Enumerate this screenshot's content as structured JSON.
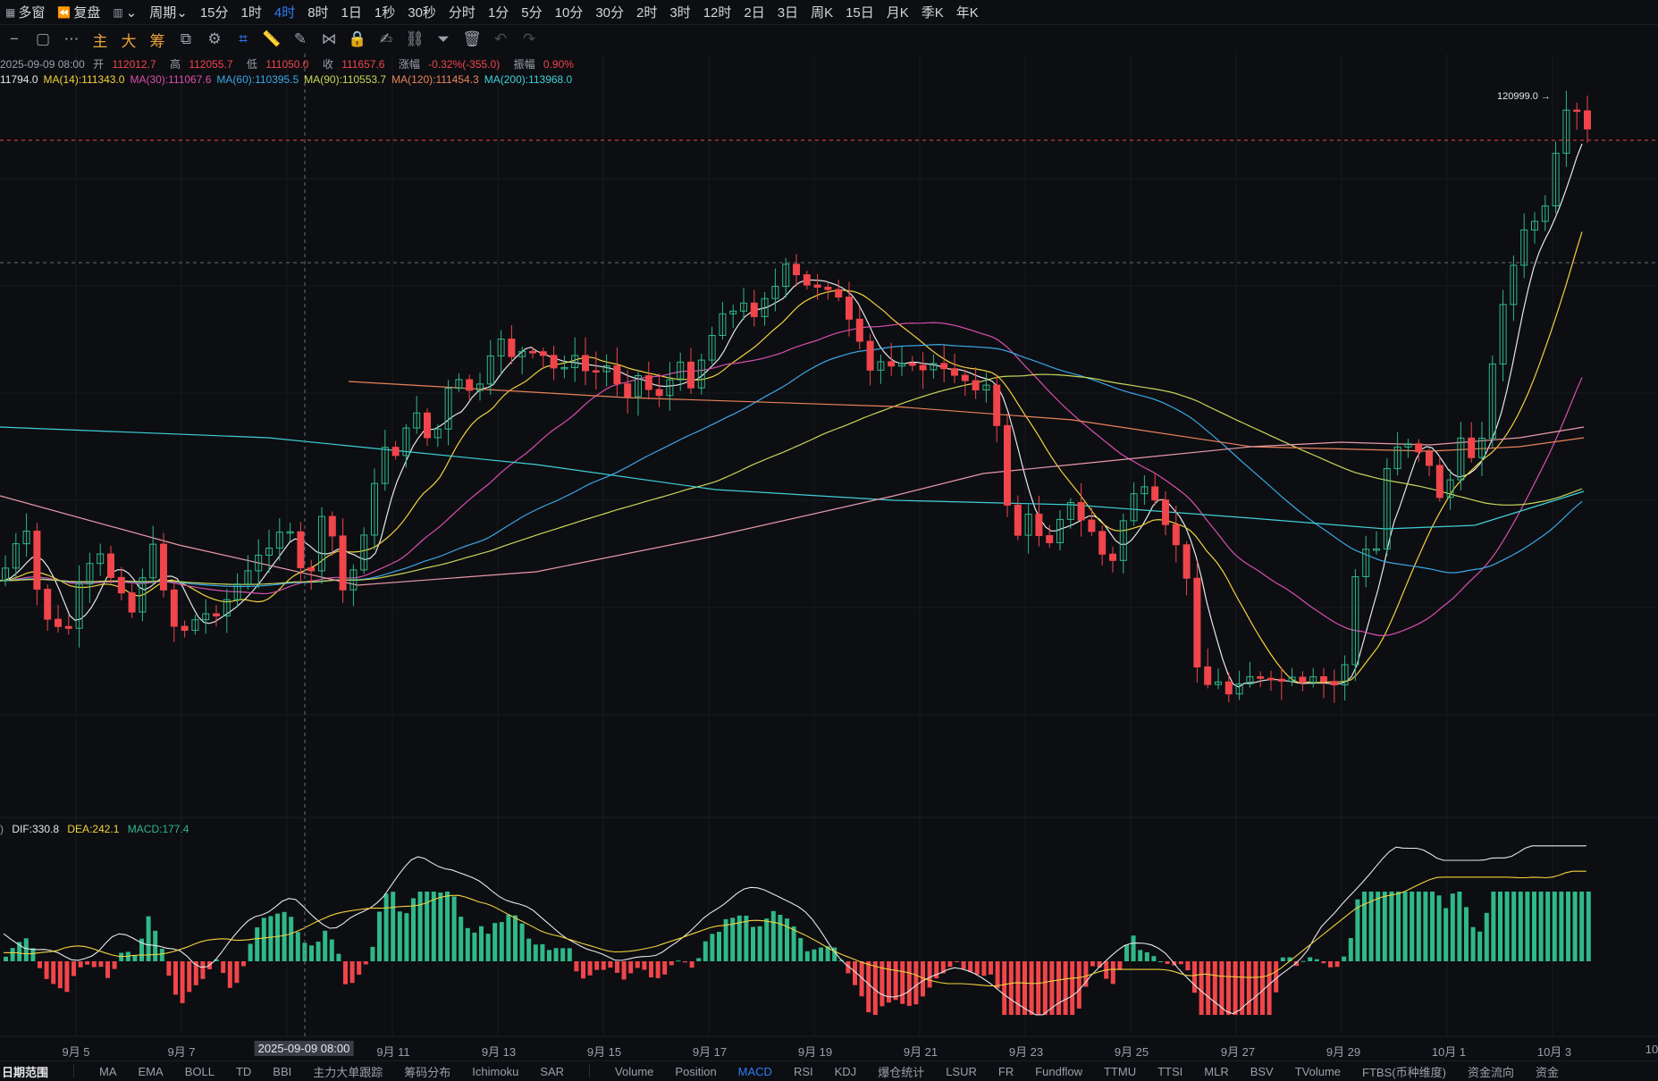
{
  "topbar": {
    "items": [
      {
        "icon": "grid-icon",
        "label": "多窗"
      },
      {
        "icon": "replay-icon",
        "label": "复盘"
      },
      {
        "icon": "candles-icon",
        "label": "⌄"
      },
      {
        "label": "周期⌄"
      },
      {
        "label": "15分"
      },
      {
        "label": "1时"
      },
      {
        "label": "4时",
        "active": true
      },
      {
        "label": "8时"
      },
      {
        "label": "1日"
      },
      {
        "label": "1秒"
      },
      {
        "label": "30秒"
      },
      {
        "label": "分时"
      },
      {
        "label": "1分"
      },
      {
        "label": "5分"
      },
      {
        "label": "10分"
      },
      {
        "label": "30分"
      },
      {
        "label": "2时"
      },
      {
        "label": "3时"
      },
      {
        "label": "12时"
      },
      {
        "label": "2日"
      },
      {
        "label": "3日"
      },
      {
        "label": "周K"
      },
      {
        "label": "15日"
      },
      {
        "label": "月K"
      },
      {
        "label": "季K"
      },
      {
        "label": "年K"
      }
    ]
  },
  "toolbar": {
    "tools": [
      {
        "name": "minus-icon",
        "glyph": "−"
      },
      {
        "name": "rectangle-icon",
        "glyph": "▢"
      },
      {
        "name": "more-icon",
        "glyph": "⋯"
      },
      {
        "name": "main-indicator-icon",
        "glyph": "主",
        "accent": true
      },
      {
        "name": "large-order-icon",
        "glyph": "大",
        "accent": true
      },
      {
        "name": "chip-icon",
        "glyph": "筹",
        "accent": true
      },
      {
        "name": "layout-icon",
        "glyph": "⧉"
      },
      {
        "name": "draw-settings-icon",
        "glyph": "⚙"
      },
      {
        "name": "crosshair-select-icon",
        "glyph": "⌗",
        "active": true
      },
      {
        "name": "ruler-icon",
        "glyph": "📏"
      },
      {
        "name": "pen-icon",
        "glyph": "✎"
      },
      {
        "name": "magnet-icon",
        "glyph": "⋈"
      },
      {
        "name": "lock-icon",
        "glyph": "🔒"
      },
      {
        "name": "note-icon",
        "glyph": "✍"
      },
      {
        "name": "link-icon",
        "glyph": "⛓"
      },
      {
        "name": "filter-icon",
        "glyph": "⏷"
      },
      {
        "name": "trash-icon",
        "glyph": "🗑"
      },
      {
        "name": "undo-icon",
        "glyph": "↶",
        "dim": true
      },
      {
        "name": "redo-icon",
        "glyph": "↷",
        "dim": true
      }
    ]
  },
  "ohlc": {
    "date": "2025-09-09 08:00",
    "open_label": "开",
    "open": "112012.7",
    "high_label": "高",
    "high": "112055.7",
    "low_label": "低",
    "low": "111050.0",
    "close_label": "收",
    "close": "111657.6",
    "change_label": "涨幅",
    "change": "-0.32%(-355.0)",
    "amp_label": "振幅",
    "amp": "0.90%"
  },
  "ma": [
    {
      "label": "11794.0",
      "color": "#e6e7ea"
    },
    {
      "label": "MA(14):111343.0",
      "color": "#f2d23d"
    },
    {
      "label": "MA(30):111067.6",
      "color": "#d84fae"
    },
    {
      "label": "MA(60):110395.5",
      "color": "#3aa7e6"
    },
    {
      "label": "MA(90):110553.7",
      "color": "#c9d65a"
    },
    {
      "label": "MA(120):111454.3",
      "color": "#e8835a"
    },
    {
      "label": "MA(200):113968.0",
      "color": "#3fd0d8"
    }
  ],
  "high_marker": "120999.0 →",
  "macd": {
    "prefix": ")",
    "dif": "DIF:330.8",
    "dif_color": "#e6e7ea",
    "dea": "DEA:242.1",
    "dea_color": "#f2d23d",
    "macd": "MACD:177.4",
    "macd_color": "#2fb888"
  },
  "xaxis": {
    "labels": [
      "9月 5",
      "9月 7",
      "9月 11",
      "9月 13",
      "9月 15",
      "9月 17",
      "9月 19",
      "9月 21",
      "9月 23",
      "9月 25",
      "9月 27",
      "9月 29",
      "10月 1",
      "10月 3",
      "10"
    ],
    "crosshair_date": "2025-09-09 08:00"
  },
  "bottombar": {
    "first": "日期范围",
    "main": [
      "MA",
      "EMA",
      "BOLL",
      "TD",
      "BBI",
      "主力大单跟踪",
      "筹码分布",
      "Ichimoku",
      "SAR"
    ],
    "sub": [
      "Volume",
      "Position",
      "MACD",
      "RSI",
      "KDJ",
      "爆仓统计",
      "LSUR",
      "FR",
      "Fundflow",
      "TTMU",
      "TTSI",
      "MLR",
      "BSV",
      "TVolume",
      "FTBS(币种维度)",
      "资金流向",
      "资金"
    ],
    "active": "MACD"
  },
  "chart_data": {
    "type": "candlestick",
    "x_dates": [
      "9月 5",
      "9月 7",
      "9月 11",
      "9月 13",
      "9月 15",
      "9月 17",
      "9月 19",
      "9月 21",
      "9月 23",
      "9月 25",
      "9月 27",
      "9月 29",
      "10月 1",
      "10月 3"
    ],
    "high_marker": 120999.0,
    "crosshair_close": 111657.6,
    "macd_last": {
      "dif": 330.8,
      "dea": 242.1,
      "macd": 177.4
    }
  }
}
